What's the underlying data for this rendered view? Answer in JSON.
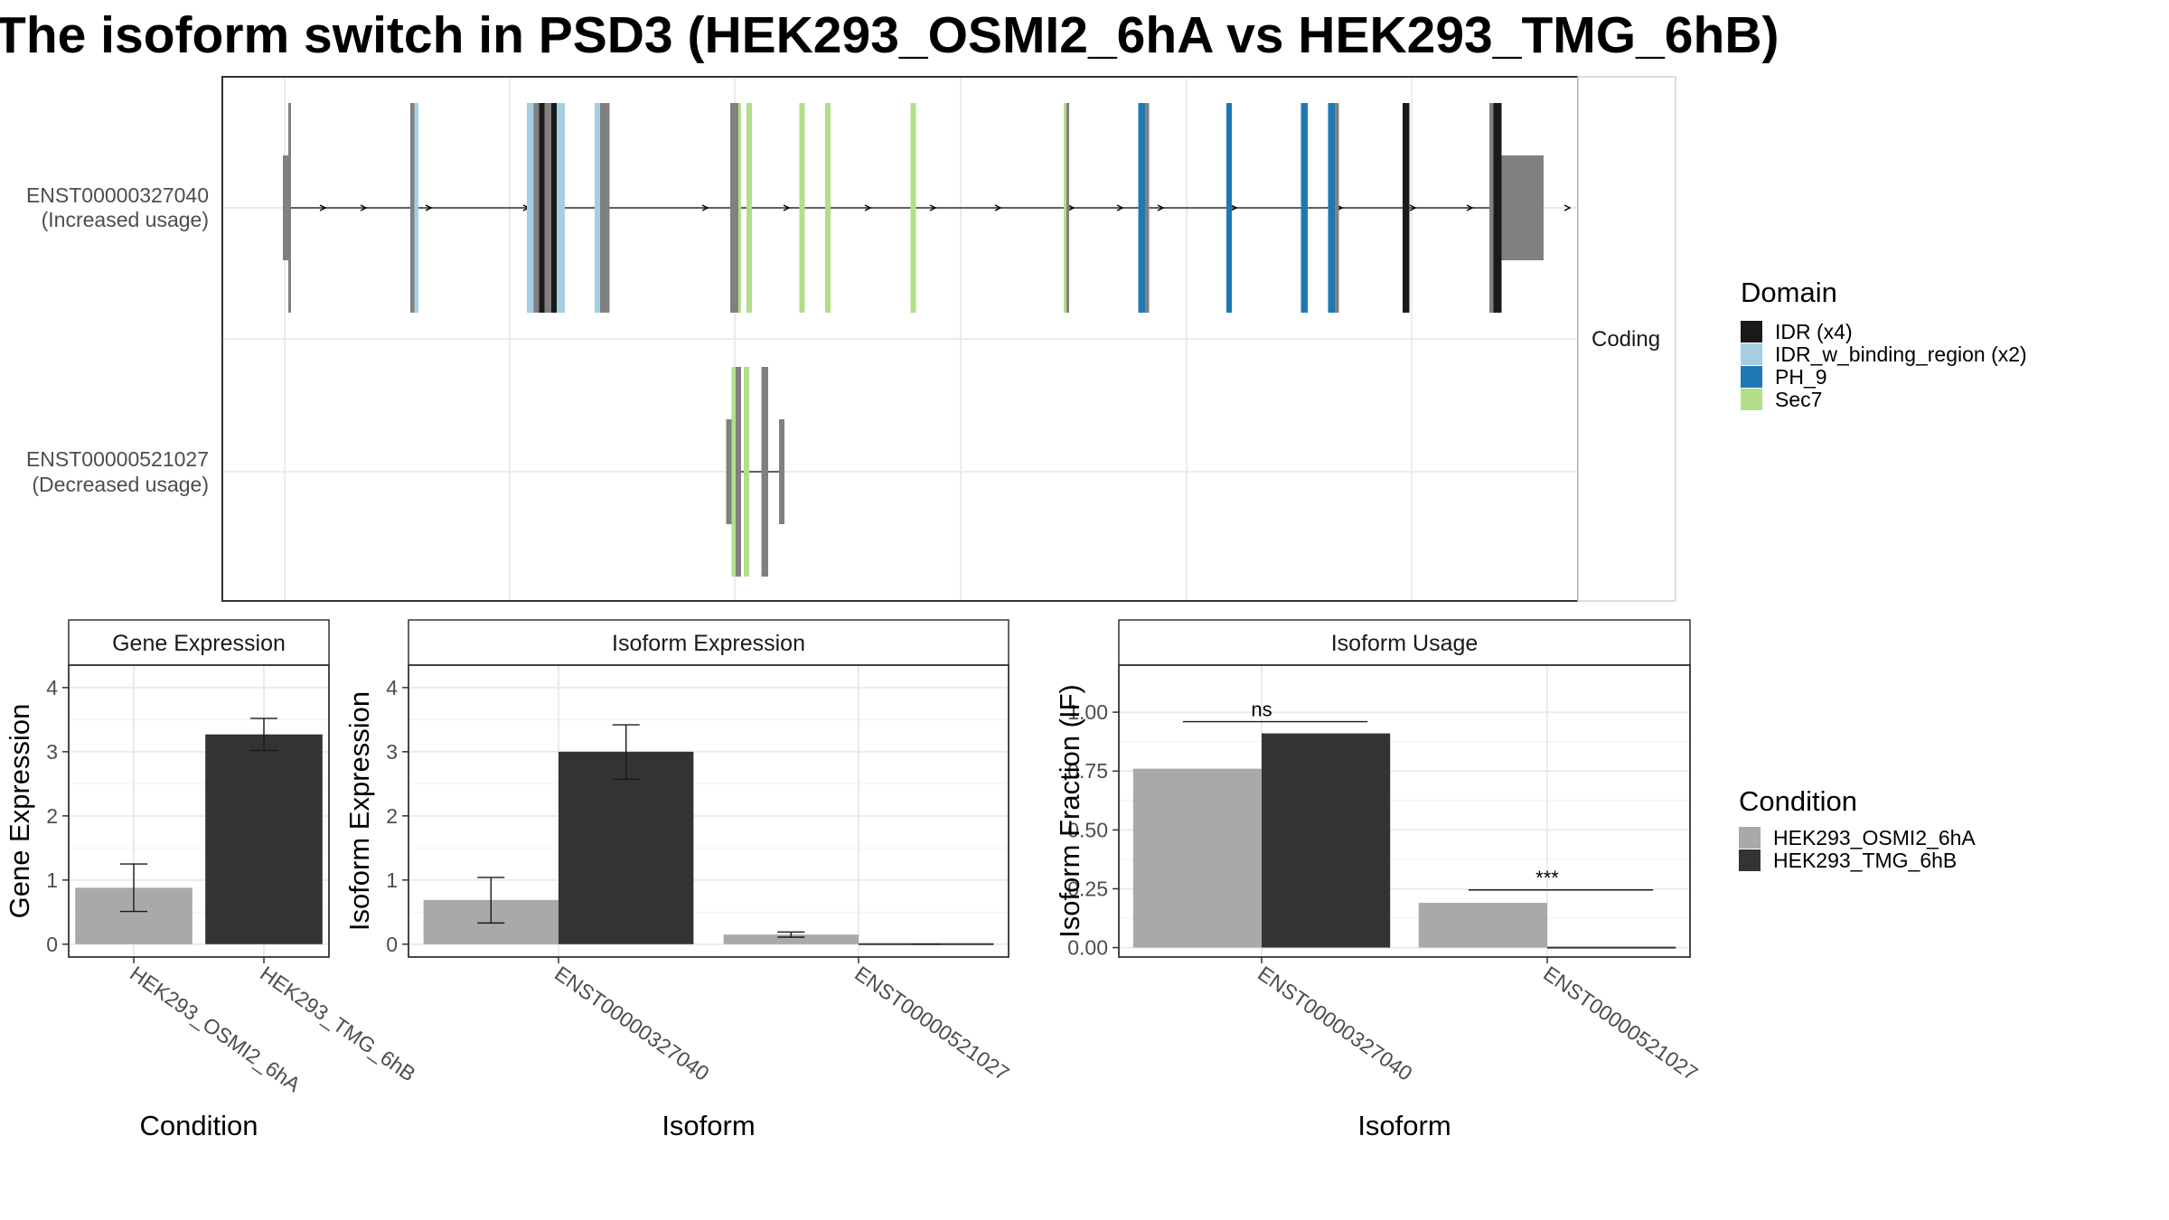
{
  "title": "The isoform switch in PSD3 (HEK293_OSMI2_6hA vs HEK293_TMG_6hB)",
  "colors": {
    "IDR": "#1a1a1a",
    "IDR_w_binding_region": "#a6cee3",
    "PH_9": "#1f78b4",
    "Sec7": "#b2df8a",
    "none": "#808080",
    "cond_A": "#a9a9a9",
    "cond_B": "#333333"
  },
  "isoform_panel": {
    "strip_label": "Coding",
    "isoforms": [
      {
        "id": "ENST00000327040",
        "usage": "(Increased usage)",
        "exons": [
          {
            "x": 0.0,
            "w": 0.004,
            "domain": "none",
            "h": "utr"
          },
          {
            "x": 0.004,
            "w": 0.002,
            "domain": "none",
            "h": "cds"
          },
          {
            "x": 0.094,
            "w": 0.003,
            "domain": "none",
            "h": "cds"
          },
          {
            "x": 0.097,
            "w": 0.003,
            "domain": "IDR_w_binding_region",
            "h": "cds"
          },
          {
            "x": 0.18,
            "w": 0.005,
            "domain": "IDR_w_binding_region",
            "h": "cds"
          },
          {
            "x": 0.185,
            "w": 0.004,
            "domain": "none",
            "h": "cds"
          },
          {
            "x": 0.189,
            "w": 0.004,
            "domain": "IDR",
            "h": "cds"
          },
          {
            "x": 0.193,
            "w": 0.005,
            "domain": "none",
            "h": "cds"
          },
          {
            "x": 0.198,
            "w": 0.004,
            "domain": "IDR",
            "h": "cds"
          },
          {
            "x": 0.202,
            "w": 0.006,
            "domain": "IDR_w_binding_region",
            "h": "cds"
          },
          {
            "x": 0.23,
            "w": 0.004,
            "domain": "IDR_w_binding_region",
            "h": "cds"
          },
          {
            "x": 0.234,
            "w": 0.007,
            "domain": "none",
            "h": "cds"
          },
          {
            "x": 0.33,
            "w": 0.006,
            "domain": "none",
            "h": "cds"
          },
          {
            "x": 0.336,
            "w": 0.002,
            "domain": "Sec7",
            "h": "cds"
          },
          {
            "x": 0.342,
            "w": 0.004,
            "domain": "Sec7",
            "h": "cds"
          },
          {
            "x": 0.381,
            "w": 0.004,
            "domain": "Sec7",
            "h": "cds"
          },
          {
            "x": 0.4,
            "w": 0.004,
            "domain": "Sec7",
            "h": "cds"
          },
          {
            "x": 0.463,
            "w": 0.004,
            "domain": "Sec7",
            "h": "cds"
          },
          {
            "x": 0.576,
            "w": 0.002,
            "domain": "Sec7",
            "h": "cds"
          },
          {
            "x": 0.578,
            "w": 0.002,
            "domain": "none",
            "h": "cds"
          },
          {
            "x": 0.631,
            "w": 0.005,
            "domain": "PH_9",
            "h": "cds"
          },
          {
            "x": 0.636,
            "w": 0.003,
            "domain": "none",
            "h": "cds"
          },
          {
            "x": 0.696,
            "w": 0.004,
            "domain": "PH_9",
            "h": "cds"
          },
          {
            "x": 0.751,
            "w": 0.005,
            "domain": "PH_9",
            "h": "cds"
          },
          {
            "x": 0.771,
            "w": 0.005,
            "domain": "PH_9",
            "h": "cds"
          },
          {
            "x": 0.776,
            "w": 0.003,
            "domain": "none",
            "h": "cds"
          },
          {
            "x": 0.826,
            "w": 0.005,
            "domain": "IDR",
            "h": "cds"
          },
          {
            "x": 0.89,
            "w": 0.003,
            "domain": "none",
            "h": "cds"
          },
          {
            "x": 0.893,
            "w": 0.006,
            "domain": "IDR",
            "h": "cds"
          },
          {
            "x": 0.899,
            "w": 0.031,
            "domain": "none",
            "h": "utr"
          }
        ],
        "intron_span": [
          0.004,
          0.899
        ]
      },
      {
        "id": "ENST00000521027",
        "usage": "(Decreased usage)",
        "exons": [
          {
            "x": 0.327,
            "w": 0.004,
            "domain": "none",
            "h": "utr"
          },
          {
            "x": 0.331,
            "w": 0.003,
            "domain": "Sec7",
            "h": "cds"
          },
          {
            "x": 0.334,
            "w": 0.004,
            "domain": "none",
            "h": "cds"
          },
          {
            "x": 0.34,
            "w": 0.004,
            "domain": "Sec7",
            "h": "cds"
          },
          {
            "x": 0.353,
            "w": 0.005,
            "domain": "none",
            "h": "cds"
          },
          {
            "x": 0.366,
            "w": 0.004,
            "domain": "none",
            "h": "utr"
          }
        ],
        "intron_span": [
          0.331,
          0.366
        ]
      }
    ]
  },
  "domain_legend": {
    "title": "Domain",
    "items": [
      {
        "label": "IDR (x4)",
        "key": "IDR"
      },
      {
        "label": "IDR_w_binding_region (x2)",
        "key": "IDR_w_binding_region"
      },
      {
        "label": "PH_9",
        "key": "PH_9"
      },
      {
        "label": "Sec7",
        "key": "Sec7"
      }
    ]
  },
  "condition_legend": {
    "title": "Condition",
    "items": [
      {
        "label": "HEK293_OSMI2_6hA",
        "key": "cond_A"
      },
      {
        "label": "HEK293_TMG_6hB",
        "key": "cond_B"
      }
    ]
  },
  "chart_data": [
    {
      "type": "bar",
      "title": "Gene Expression",
      "xlabel": "Condition",
      "ylabel": "Gene Expression",
      "categories": [
        "HEK293_OSMI2_6hA",
        "HEK293_TMG_6hB"
      ],
      "values": [
        0.88,
        3.27
      ],
      "err_low": [
        0.51,
        3.02
      ],
      "err_high": [
        1.25,
        3.52
      ],
      "ylim": [
        -0.2,
        4.35
      ],
      "yticks": [
        0,
        1,
        2,
        3,
        4
      ]
    },
    {
      "type": "bar",
      "title": "Isoform Expression",
      "xlabel": "Isoform",
      "ylabel": "Isoform Expression",
      "categories": [
        "ENST00000327040",
        "ENST00000521027"
      ],
      "series": [
        {
          "name": "HEK293_OSMI2_6hA",
          "values": [
            0.69,
            0.15
          ],
          "err_low": [
            0.33,
            0.11
          ],
          "err_high": [
            1.04,
            0.19
          ]
        },
        {
          "name": "HEK293_TMG_6hB",
          "values": [
            3.0,
            0.0
          ],
          "err_low": [
            2.57,
            0.0
          ],
          "err_high": [
            3.42,
            0.0
          ]
        }
      ],
      "ylim": [
        -0.2,
        4.35
      ],
      "yticks": [
        0,
        1,
        2,
        3,
        4
      ]
    },
    {
      "type": "bar",
      "title": "Isoform Usage",
      "xlabel": "Isoform",
      "ylabel": "Isoform Fraction (IF)",
      "categories": [
        "ENST00000327040",
        "ENST00000521027"
      ],
      "series": [
        {
          "name": "HEK293_OSMI2_6hA",
          "values": [
            0.76,
            0.19
          ]
        },
        {
          "name": "HEK293_TMG_6hB",
          "values": [
            0.91,
            0.0
          ]
        }
      ],
      "significance": [
        "ns",
        "***"
      ],
      "ylim": [
        -0.04,
        1.2
      ],
      "yticks": [
        0.0,
        0.25,
        0.5,
        0.75,
        1.0
      ],
      "ytick_labels": [
        "0.00",
        "0.25",
        "0.50",
        "0.75",
        "1.00"
      ]
    }
  ]
}
